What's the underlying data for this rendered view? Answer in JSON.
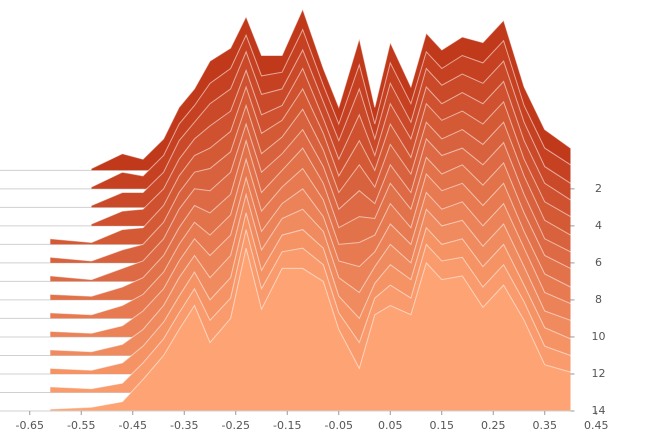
{
  "chart_data": {
    "type": "ridgeline",
    "x": [
      -0.61,
      -0.53,
      -0.47,
      -0.43,
      -0.39,
      -0.36,
      -0.33,
      -0.3,
      -0.26,
      -0.23,
      -0.2,
      -0.16,
      -0.12,
      -0.08,
      -0.05,
      -0.01,
      0.02,
      0.05,
      0.09,
      0.12,
      0.15,
      0.19,
      0.23,
      0.27,
      0.31,
      0.35,
      0.4
    ],
    "xlim": [
      -0.7,
      0.5
    ],
    "xticks": [
      -0.65,
      -0.55,
      -0.45,
      -0.35,
      -0.25,
      -0.15,
      -0.05,
      0.05,
      0.15,
      0.25,
      0.35,
      0.45
    ],
    "ylim": [
      -8.2,
      14
    ],
    "y_inverted": true,
    "y_axis_side": "right",
    "yticks": [
      2,
      4,
      6,
      8,
      10,
      12,
      14
    ],
    "series": [
      {
        "offset": 1,
        "color": "#c1391b",
        "values": [
          null,
          0.1,
          0.9,
          0.6,
          1.7,
          3.4,
          4.4,
          5.9,
          6.6,
          8.3,
          6.2,
          6.2,
          8.7,
          5.5,
          3.4,
          7.1,
          3.4,
          6.9,
          4.5,
          7.4,
          6.5,
          7.2,
          6.9,
          8.1,
          4.5,
          2.2,
          1.2
        ]
      },
      {
        "offset": 2,
        "color": "#c64122",
        "values": [
          null,
          0.1,
          0.9,
          0.7,
          1.8,
          3.5,
          4.5,
          5.7,
          6.5,
          8.3,
          6.1,
          6.3,
          8.6,
          5.6,
          3.5,
          6.7,
          3.5,
          6.8,
          4.6,
          7.4,
          6.5,
          7.2,
          6.8,
          8.0,
          4.5,
          2.2,
          1.3
        ]
      },
      {
        "offset": 3,
        "color": "#ca4929",
        "values": [
          null,
          0.1,
          0.8,
          0.8,
          1.9,
          3.6,
          4.6,
          5.6,
          6.4,
          8.4,
          6.1,
          6.4,
          8.5,
          5.7,
          3.6,
          6.4,
          3.7,
          6.7,
          4.6,
          7.5,
          6.6,
          7.2,
          6.7,
          7.9,
          4.6,
          2.2,
          1.3
        ]
      },
      {
        "offset": 4,
        "color": "#cf512f",
        "values": [
          null,
          0.1,
          0.8,
          0.9,
          2.0,
          3.6,
          4.7,
          5.4,
          6.2,
          8.4,
          6.0,
          6.5,
          8.5,
          5.8,
          3.6,
          6.0,
          3.8,
          6.6,
          4.7,
          7.5,
          6.6,
          7.2,
          6.6,
          7.8,
          4.6,
          2.3,
          1.4
        ]
      },
      {
        "offset": 5,
        "color": "#d45a36",
        "values": [
          0.3,
          0.1,
          0.8,
          0.9,
          2.1,
          3.7,
          4.8,
          5.2,
          6.1,
          8.5,
          6.0,
          6.7,
          8.4,
          6.0,
          3.7,
          5.6,
          4.0,
          6.5,
          4.7,
          7.6,
          6.7,
          7.2,
          6.5,
          7.7,
          4.6,
          2.3,
          1.5
        ]
      },
      {
        "offset": 6,
        "color": "#d8623d",
        "values": [
          0.3,
          0.1,
          0.7,
          1.0,
          2.2,
          3.8,
          4.9,
          5.1,
          6.0,
          8.5,
          5.9,
          6.8,
          8.3,
          6.1,
          3.8,
          5.3,
          4.1,
          6.4,
          4.8,
          7.6,
          6.7,
          7.2,
          6.4,
          7.6,
          4.7,
          2.3,
          1.5
        ]
      },
      {
        "offset": 7,
        "color": "#dd6a44",
        "values": [
          0.3,
          0.1,
          0.7,
          1.1,
          2.3,
          3.9,
          5.0,
          4.9,
          5.9,
          8.5,
          5.9,
          6.9,
          8.2,
          6.2,
          3.9,
          4.9,
          4.2,
          6.3,
          4.8,
          7.7,
          6.8,
          7.2,
          6.3,
          7.5,
          4.7,
          2.3,
          1.6
        ]
      },
      {
        "offset": 8,
        "color": "#e2724a",
        "values": [
          0.3,
          0.2,
          0.7,
          1.2,
          2.4,
          3.9,
          5.1,
          4.7,
          5.7,
          8.6,
          5.8,
          7.0,
          8.2,
          6.3,
          3.9,
          4.5,
          4.4,
          6.3,
          4.9,
          7.7,
          6.8,
          7.3,
          6.2,
          7.4,
          4.7,
          2.4,
          1.7
        ]
      },
      {
        "offset": 9,
        "color": "#e77a51",
        "values": [
          0.3,
          0.2,
          0.7,
          1.3,
          2.5,
          4.0,
          5.2,
          4.5,
          5.6,
          8.6,
          5.8,
          7.1,
          8.1,
          6.4,
          4.0,
          4.1,
          4.5,
          6.2,
          4.9,
          7.8,
          6.9,
          7.3,
          6.1,
          7.3,
          4.7,
          2.4,
          1.7
        ]
      },
      {
        "offset": 10,
        "color": "#eb8258",
        "values": [
          0.3,
          0.2,
          0.6,
          1.4,
          2.6,
          4.1,
          5.3,
          4.4,
          5.5,
          8.6,
          5.7,
          7.2,
          8.0,
          6.5,
          4.1,
          3.8,
          4.6,
          6.1,
          5.0,
          7.8,
          6.9,
          7.3,
          6.0,
          7.2,
          4.8,
          2.4,
          1.8
        ]
      },
      {
        "offset": 11,
        "color": "#f08b5f",
        "values": [
          0.3,
          0.2,
          0.6,
          1.4,
          2.7,
          4.2,
          5.4,
          4.2,
          5.4,
          8.7,
          5.7,
          7.4,
          7.9,
          6.7,
          4.2,
          3.4,
          4.8,
          6.0,
          5.0,
          7.9,
          7.0,
          7.3,
          5.9,
          7.1,
          4.8,
          2.4,
          1.9
        ]
      },
      {
        "offset": 12,
        "color": "#f59365",
        "values": [
          0.3,
          0.2,
          0.6,
          1.5,
          2.8,
          4.2,
          5.5,
          4.0,
          5.2,
          8.7,
          5.6,
          7.5,
          7.8,
          6.8,
          4.2,
          3.0,
          4.9,
          5.9,
          5.1,
          7.9,
          7.0,
          7.3,
          5.8,
          7.0,
          4.8,
          2.5,
          1.9
        ]
      },
      {
        "offset": 13,
        "color": "#f99b6c",
        "values": [
          0.3,
          0.2,
          0.5,
          1.6,
          2.9,
          4.3,
          5.6,
          3.9,
          5.1,
          8.8,
          5.6,
          7.6,
          7.8,
          6.9,
          4.3,
          2.7,
          5.1,
          5.8,
          5.1,
          8.0,
          7.1,
          7.3,
          5.7,
          6.9,
          4.9,
          2.5,
          2.0
        ]
      },
      {
        "offset": 14,
        "color": "#fea373",
        "values": [
          0.1,
          0.2,
          0.5,
          1.7,
          3.0,
          4.4,
          5.7,
          3.7,
          5.0,
          8.8,
          5.5,
          7.7,
          7.7,
          7.0,
          4.4,
          2.3,
          5.2,
          5.7,
          5.2,
          8.0,
          7.1,
          7.3,
          5.6,
          6.8,
          4.9,
          2.5,
          2.1
        ]
      }
    ]
  }
}
